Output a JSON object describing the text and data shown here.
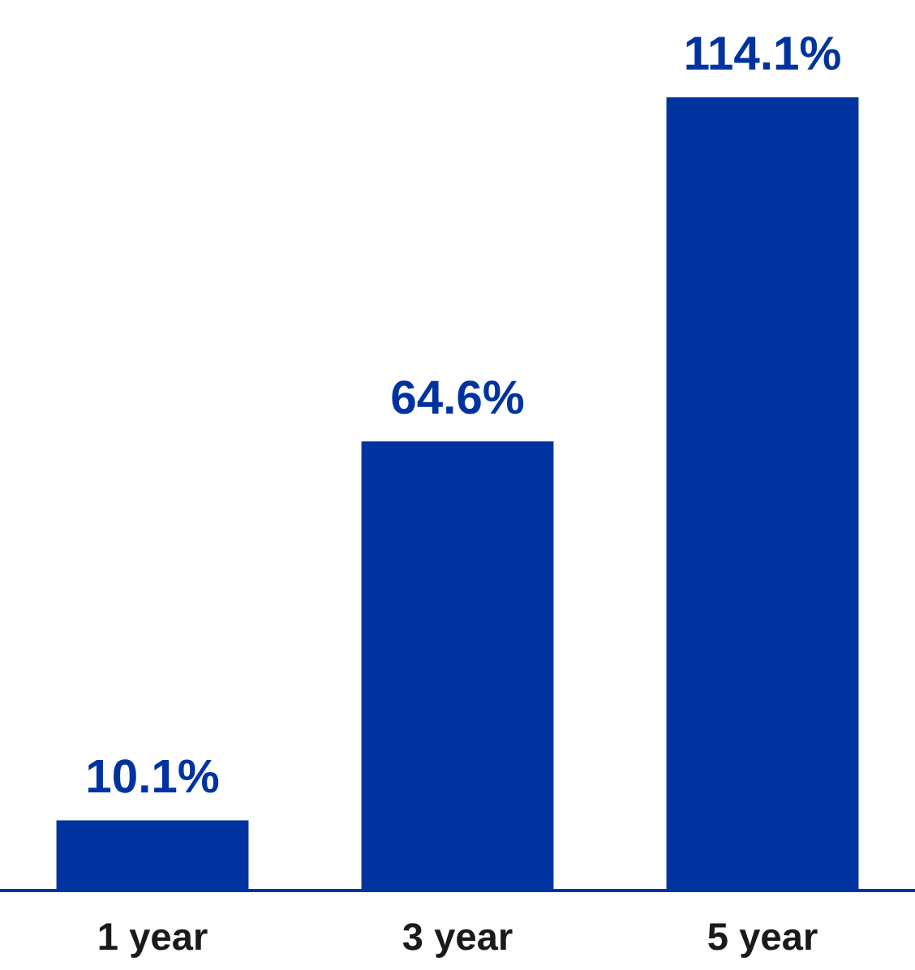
{
  "chart_data": {
    "type": "bar",
    "categories": [
      "1 year",
      "3 year",
      "5 year"
    ],
    "values": [
      10.1,
      64.6,
      114.1
    ],
    "value_labels": [
      "10.1%",
      "64.6%",
      "114.1%"
    ],
    "color": "#0033a0",
    "grid": false
  }
}
